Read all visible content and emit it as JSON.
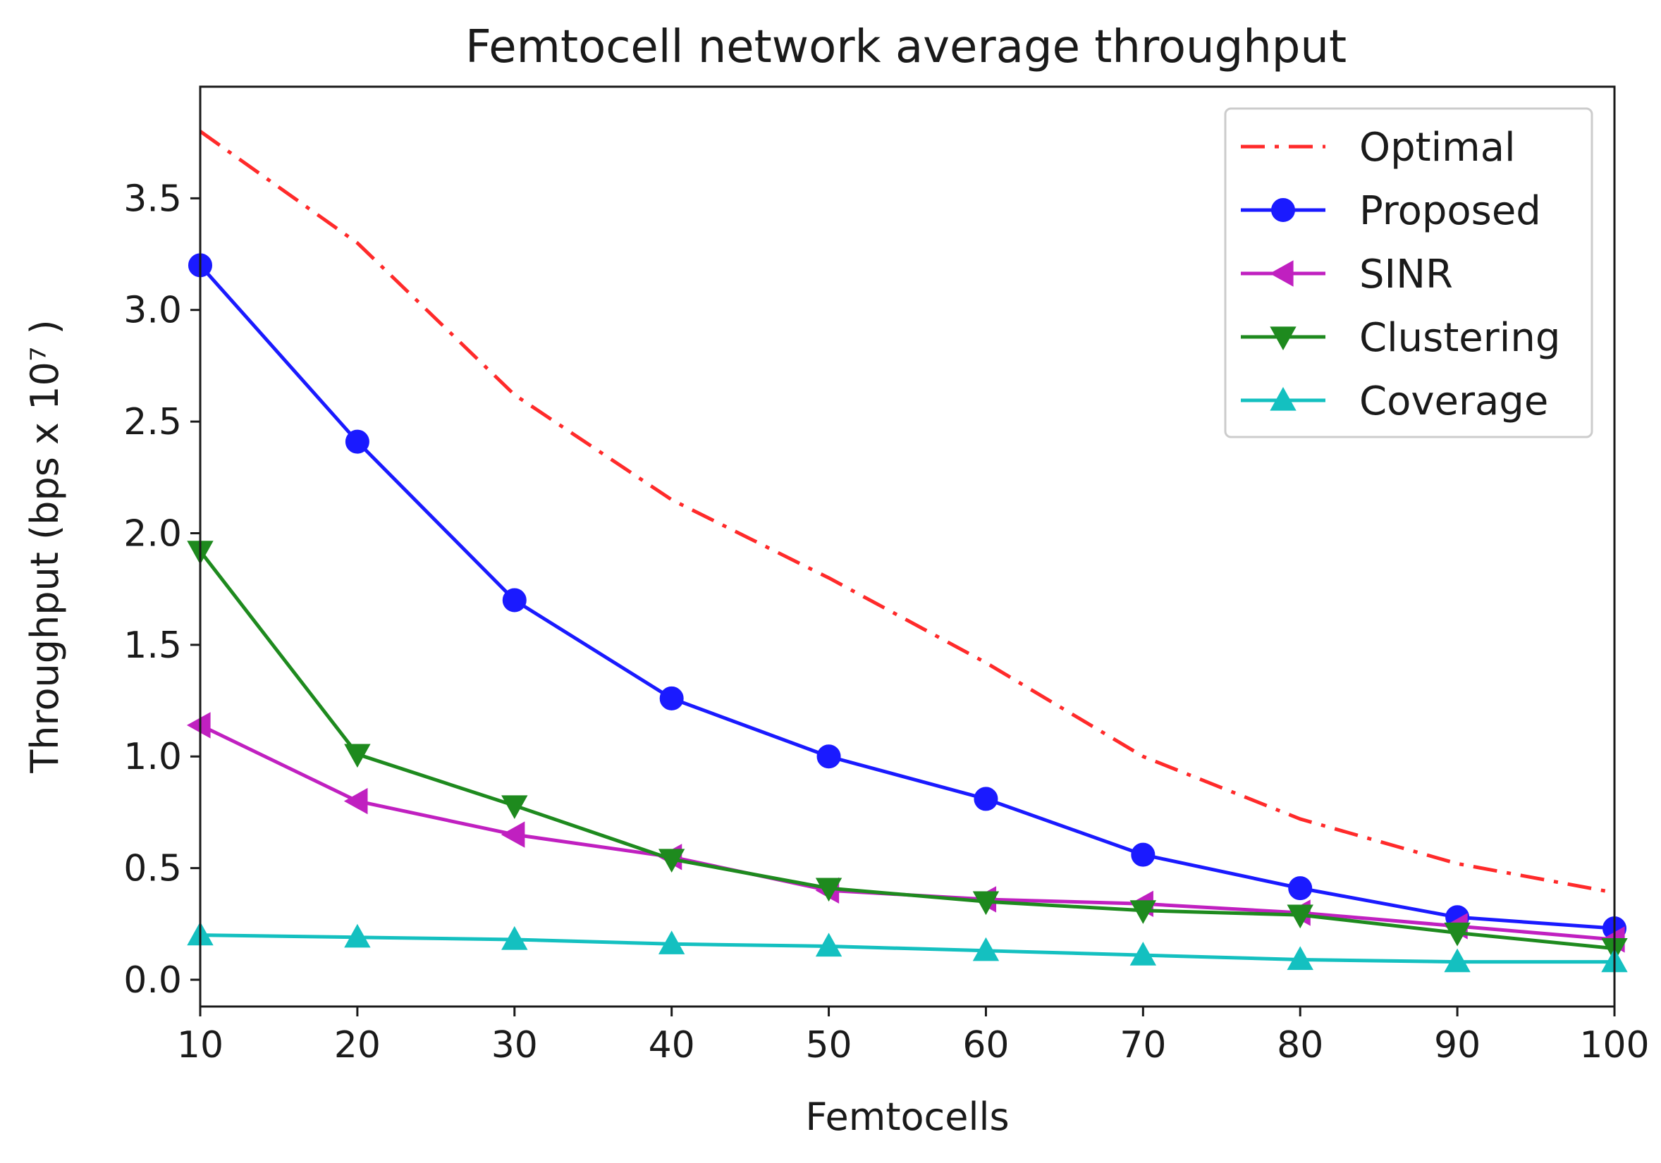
{
  "chart_data": {
    "type": "line",
    "title": "Femtocell network average throughput",
    "xlabel": "Femtocells",
    "ylabel": "Throughput (bps x 10⁷ )",
    "x": [
      10,
      20,
      30,
      40,
      50,
      60,
      70,
      80,
      90,
      100
    ],
    "xlim": [
      10,
      100
    ],
    "ylim": [
      -0.12,
      4.0
    ],
    "xticks": [
      "10",
      "20",
      "30",
      "40",
      "50",
      "60",
      "70",
      "80",
      "90",
      "100"
    ],
    "yticks": [
      "0.0",
      "0.5",
      "1.0",
      "1.5",
      "2.0",
      "2.5",
      "3.0",
      "3.5"
    ],
    "ytick_values": [
      0.0,
      0.5,
      1.0,
      1.5,
      2.0,
      2.5,
      3.0,
      3.5
    ],
    "grid": false,
    "legend_position": "top-right",
    "series": [
      {
        "name": "Optimal",
        "color": "#ff2a2a",
        "dash": "dashdot",
        "marker": "none",
        "values": [
          3.8,
          3.3,
          2.62,
          2.15,
          1.8,
          1.42,
          1.0,
          0.72,
          0.52,
          0.39
        ]
      },
      {
        "name": "Proposed",
        "color": "#1a1aff",
        "dash": "solid",
        "marker": "circle",
        "values": [
          3.2,
          2.41,
          1.7,
          1.26,
          1.0,
          0.81,
          0.56,
          0.41,
          0.28,
          0.23
        ]
      },
      {
        "name": "SINR",
        "color": "#c020c0",
        "dash": "solid",
        "marker": "triangle-left",
        "values": [
          1.14,
          0.8,
          0.65,
          0.55,
          0.4,
          0.36,
          0.34,
          0.3,
          0.24,
          0.18
        ]
      },
      {
        "name": "Clustering",
        "color": "#1e8a1e",
        "dash": "solid",
        "marker": "triangle-down",
        "values": [
          1.92,
          1.01,
          0.78,
          0.54,
          0.41,
          0.35,
          0.31,
          0.29,
          0.21,
          0.14
        ]
      },
      {
        "name": "Coverage",
        "color": "#14c0c0",
        "dash": "solid",
        "marker": "triangle-up",
        "values": [
          0.2,
          0.19,
          0.18,
          0.16,
          0.15,
          0.13,
          0.11,
          0.09,
          0.08,
          0.08
        ]
      }
    ]
  }
}
